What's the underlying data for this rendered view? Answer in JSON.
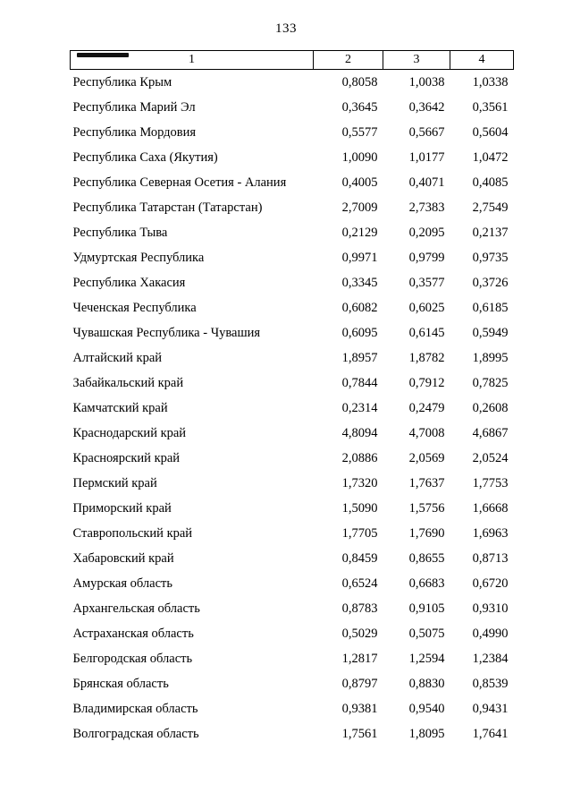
{
  "page": {
    "number": "133"
  },
  "table": {
    "headers": [
      "1",
      "2",
      "3",
      "4"
    ],
    "rows": [
      {
        "name": "Республика Крым",
        "values": [
          "0,8058",
          "1,0038",
          "1,0338"
        ]
      },
      {
        "name": "Республика Марий Эл",
        "values": [
          "0,3645",
          "0,3642",
          "0,3561"
        ]
      },
      {
        "name": "Республика Мордовия",
        "values": [
          "0,5577",
          "0,5667",
          "0,5604"
        ]
      },
      {
        "name": "Республика Саха (Якутия)",
        "values": [
          "1,0090",
          "1,0177",
          "1,0472"
        ]
      },
      {
        "name": "Республика Северная Осетия - Алания",
        "values": [
          "0,4005",
          "0,4071",
          "0,4085"
        ]
      },
      {
        "name": "Республика Татарстан (Татарстан)",
        "values": [
          "2,7009",
          "2,7383",
          "2,7549"
        ]
      },
      {
        "name": "Республика Тыва",
        "values": [
          "0,2129",
          "0,2095",
          "0,2137"
        ]
      },
      {
        "name": "Удмуртская Республика",
        "values": [
          "0,9971",
          "0,9799",
          "0,9735"
        ]
      },
      {
        "name": "Республика Хакасия",
        "values": [
          "0,3345",
          "0,3577",
          "0,3726"
        ]
      },
      {
        "name": "Чеченская Республика",
        "values": [
          "0,6082",
          "0,6025",
          "0,6185"
        ]
      },
      {
        "name": "Чувашская Республика - Чувашия",
        "values": [
          "0,6095",
          "0,6145",
          "0,5949"
        ]
      },
      {
        "name": "Алтайский край",
        "values": [
          "1,8957",
          "1,8782",
          "1,8995"
        ]
      },
      {
        "name": "Забайкальский край",
        "values": [
          "0,7844",
          "0,7912",
          "0,7825"
        ]
      },
      {
        "name": "Камчатский край",
        "values": [
          "0,2314",
          "0,2479",
          "0,2608"
        ]
      },
      {
        "name": "Краснодарский край",
        "values": [
          "4,8094",
          "4,7008",
          "4,6867"
        ]
      },
      {
        "name": "Красноярский край",
        "values": [
          "2,0886",
          "2,0569",
          "2,0524"
        ]
      },
      {
        "name": "Пермский край",
        "values": [
          "1,7320",
          "1,7637",
          "1,7753"
        ]
      },
      {
        "name": "Приморский край",
        "values": [
          "1,5090",
          "1,5756",
          "1,6668"
        ]
      },
      {
        "name": "Ставропольский край",
        "values": [
          "1,7705",
          "1,7690",
          "1,6963"
        ]
      },
      {
        "name": "Хабаровский край",
        "values": [
          "0,8459",
          "0,8655",
          "0,8713"
        ]
      },
      {
        "name": "Амурская область",
        "values": [
          "0,6524",
          "0,6683",
          "0,6720"
        ]
      },
      {
        "name": "Архангельская область",
        "values": [
          "0,8783",
          "0,9105",
          "0,9310"
        ]
      },
      {
        "name": "Астраханская область",
        "values": [
          "0,5029",
          "0,5075",
          "0,4990"
        ]
      },
      {
        "name": "Белгородская область",
        "values": [
          "1,2817",
          "1,2594",
          "1,2384"
        ]
      },
      {
        "name": "Брянская область",
        "values": [
          "0,8797",
          "0,8830",
          "0,8539"
        ]
      },
      {
        "name": "Владимирская область",
        "values": [
          "0,9381",
          "0,9540",
          "0,9431"
        ]
      },
      {
        "name": "Волгоградская область",
        "values": [
          "1,7561",
          "1,8095",
          "1,7641"
        ]
      }
    ]
  }
}
